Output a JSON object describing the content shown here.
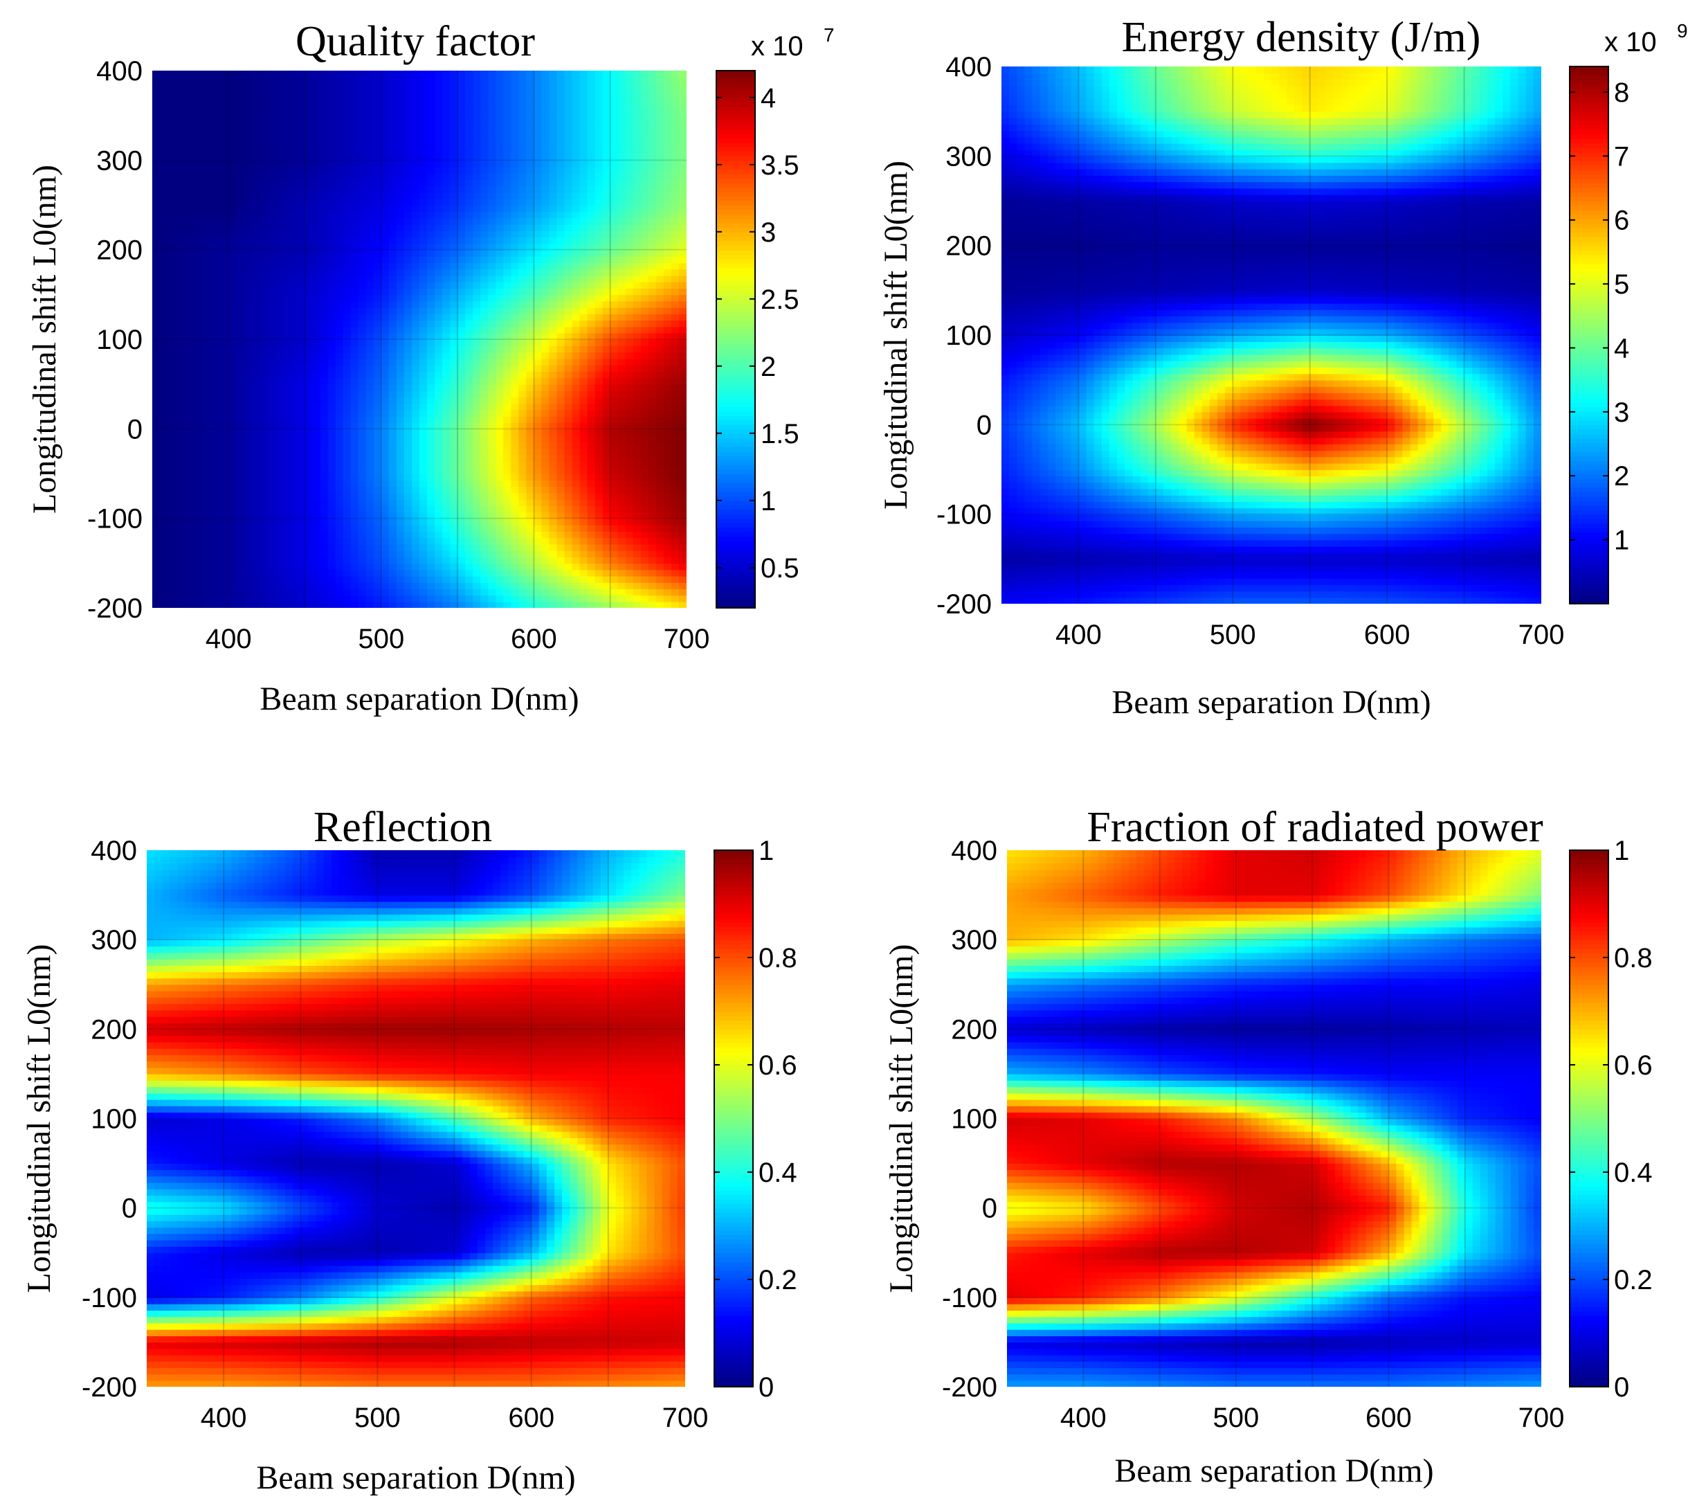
{
  "chart_data": [
    {
      "type": "heatmap",
      "title": "Quality factor",
      "xlabel": "Beam separation D(nm)",
      "ylabel": "Longitudinal shift L0(nm)",
      "x_range": [
        350,
        700
      ],
      "y_range": [
        -200,
        400
      ],
      "x_ticks": [
        "400",
        "500",
        "600",
        "700"
      ],
      "y_ticks": [
        "400",
        "300",
        "200",
        "100",
        "0",
        "-100",
        "-200"
      ],
      "colorbar": {
        "min": 0.2,
        "max": 4.2,
        "ticks": [
          "4",
          "3.5",
          "3",
          "2.5",
          "2",
          "1.5",
          "1",
          "0.5"
        ],
        "exponent_label": "x 10",
        "exponent": "7"
      },
      "x": [
        350,
        400,
        450,
        500,
        550,
        600,
        650,
        700
      ],
      "y": [
        -200,
        -150,
        -100,
        -50,
        0,
        50,
        100,
        150,
        200,
        250,
        300,
        350,
        400
      ],
      "z_description_units": "x 10^7",
      "z": [
        [
          0.2,
          0.3,
          0.5,
          0.8,
          1.2,
          1.8,
          2.3,
          2.8
        ],
        [
          0.2,
          0.3,
          0.6,
          1.0,
          1.6,
          2.4,
          3.2,
          3.8
        ],
        [
          0.2,
          0.3,
          0.6,
          1.1,
          1.9,
          2.8,
          3.7,
          4.1
        ],
        [
          0.2,
          0.3,
          0.6,
          1.2,
          2.1,
          3.1,
          3.9,
          4.2
        ],
        [
          0.2,
          0.3,
          0.6,
          1.2,
          2.1,
          3.2,
          4.0,
          4.2
        ],
        [
          0.2,
          0.3,
          0.6,
          1.1,
          1.9,
          2.9,
          3.8,
          4.1
        ],
        [
          0.2,
          0.3,
          0.5,
          1.0,
          1.7,
          2.5,
          3.4,
          3.9
        ],
        [
          0.2,
          0.3,
          0.5,
          0.8,
          1.4,
          2.0,
          2.7,
          3.2
        ],
        [
          0.2,
          0.3,
          0.4,
          0.7,
          1.1,
          1.6,
          2.1,
          2.6
        ],
        [
          0.2,
          0.2,
          0.4,
          0.6,
          0.9,
          1.3,
          1.8,
          2.3
        ],
        [
          0.2,
          0.2,
          0.3,
          0.5,
          0.8,
          1.2,
          1.7,
          2.2
        ],
        [
          0.2,
          0.2,
          0.3,
          0.5,
          0.8,
          1.2,
          1.7,
          2.2
        ],
        [
          0.2,
          0.2,
          0.3,
          0.5,
          0.8,
          1.2,
          1.7,
          2.3
        ]
      ]
    },
    {
      "type": "heatmap",
      "title": "Energy density (J/m)",
      "xlabel": "Beam separation D(nm)",
      "ylabel": "Longitudinal shift L0(nm)",
      "x_range": [
        350,
        700
      ],
      "y_range": [
        -200,
        400
      ],
      "x_ticks": [
        "400",
        "500",
        "600",
        "700"
      ],
      "y_ticks": [
        "400",
        "300",
        "200",
        "100",
        "0",
        "-100",
        "-200"
      ],
      "colorbar": {
        "min": 0,
        "max": 8.4,
        "ticks": [
          "8",
          "7",
          "6",
          "5",
          "4",
          "3",
          "2",
          "1"
        ],
        "exponent_label": "x 10",
        "exponent": "9"
      },
      "x": [
        350,
        400,
        450,
        500,
        550,
        600,
        650,
        700
      ],
      "y": [
        -200,
        -150,
        -100,
        -50,
        0,
        50,
        100,
        150,
        200,
        250,
        300,
        350,
        400
      ],
      "z_description_units": "x 10^9",
      "z": [
        [
          1.0,
          1.2,
          1.5,
          1.8,
          1.8,
          1.7,
          1.5,
          1.2
        ],
        [
          0.3,
          0.4,
          0.5,
          0.6,
          0.6,
          0.6,
          0.5,
          0.4
        ],
        [
          1.0,
          1.3,
          1.8,
          2.4,
          2.6,
          2.3,
          1.8,
          1.3
        ],
        [
          1.3,
          2.2,
          3.6,
          5.0,
          5.8,
          5.2,
          3.6,
          2.0
        ],
        [
          1.5,
          2.6,
          4.5,
          7.0,
          8.4,
          7.4,
          4.6,
          2.2
        ],
        [
          1.2,
          2.0,
          3.6,
          5.2,
          6.0,
          5.4,
          3.4,
          1.8
        ],
        [
          0.6,
          1.0,
          1.8,
          2.4,
          2.8,
          2.5,
          1.7,
          1.0
        ],
        [
          0.2,
          0.3,
          0.4,
          0.5,
          0.6,
          0.5,
          0.4,
          0.3
        ],
        [
          0.1,
          0.1,
          0.2,
          0.2,
          0.2,
          0.2,
          0.2,
          0.1
        ],
        [
          0.2,
          0.3,
          0.4,
          0.6,
          0.7,
          0.6,
          0.4,
          0.3
        ],
        [
          0.8,
          1.5,
          2.3,
          3.0,
          3.4,
          3.1,
          2.3,
          1.5
        ],
        [
          1.4,
          2.4,
          3.7,
          4.8,
          5.4,
          5.0,
          3.7,
          2.4
        ],
        [
          1.6,
          2.6,
          4.0,
          5.2,
          5.6,
          5.3,
          3.9,
          2.6
        ]
      ]
    },
    {
      "type": "heatmap",
      "title": "Reflection",
      "xlabel": "Beam separation D(nm)",
      "ylabel": "Longitudinal shift L0(nm)",
      "x_range": [
        350,
        700
      ],
      "y_range": [
        -200,
        400
      ],
      "x_ticks": [
        "400",
        "500",
        "600",
        "700"
      ],
      "y_ticks": [
        "400",
        "300",
        "200",
        "100",
        "0",
        "-100",
        "-200"
      ],
      "colorbar": {
        "min": 0,
        "max": 1,
        "ticks": [
          "1",
          "0.8",
          "0.6",
          "0.4",
          "0.2",
          "0"
        ],
        "exponent_label": "",
        "exponent": ""
      },
      "x": [
        350,
        400,
        450,
        500,
        550,
        600,
        650,
        700
      ],
      "y": [
        -200,
        -150,
        -100,
        -50,
        0,
        50,
        100,
        150,
        200,
        250,
        300,
        350,
        400
      ],
      "z": [
        [
          0.72,
          0.72,
          0.74,
          0.76,
          0.76,
          0.76,
          0.74,
          0.72
        ],
        [
          0.9,
          0.92,
          0.94,
          0.96,
          0.96,
          0.94,
          0.93,
          0.92
        ],
        [
          0.1,
          0.15,
          0.25,
          0.4,
          0.6,
          0.78,
          0.86,
          0.88
        ],
        [
          0.15,
          0.1,
          0.05,
          0.05,
          0.08,
          0.3,
          0.65,
          0.8
        ],
        [
          0.4,
          0.35,
          0.2,
          0.08,
          0.05,
          0.15,
          0.6,
          0.82
        ],
        [
          0.15,
          0.1,
          0.05,
          0.05,
          0.08,
          0.3,
          0.65,
          0.8
        ],
        [
          0.08,
          0.1,
          0.15,
          0.25,
          0.45,
          0.7,
          0.84,
          0.88
        ],
        [
          0.7,
          0.74,
          0.8,
          0.84,
          0.86,
          0.88,
          0.88,
          0.88
        ],
        [
          0.92,
          0.94,
          0.96,
          0.97,
          0.97,
          0.96,
          0.95,
          0.94
        ],
        [
          0.72,
          0.76,
          0.8,
          0.84,
          0.86,
          0.88,
          0.88,
          0.9
        ],
        [
          0.3,
          0.35,
          0.45,
          0.55,
          0.62,
          0.7,
          0.76,
          0.8
        ],
        [
          0.3,
          0.22,
          0.15,
          0.1,
          0.1,
          0.2,
          0.35,
          0.5
        ],
        [
          0.35,
          0.3,
          0.2,
          0.05,
          0.05,
          0.15,
          0.3,
          0.4
        ]
      ]
    },
    {
      "type": "heatmap",
      "title": "Fraction of radiated power",
      "xlabel": "Beam separation D(nm)",
      "ylabel": "Longitudinal shift L0(nm)",
      "x_range": [
        350,
        700
      ],
      "y_range": [
        -200,
        400
      ],
      "x_ticks": [
        "400",
        "500",
        "600",
        "700"
      ],
      "y_ticks": [
        "400",
        "300",
        "200",
        "100",
        "0",
        "-100",
        "-200"
      ],
      "colorbar": {
        "min": 0,
        "max": 1,
        "ticks": [
          "1",
          "0.8",
          "0.6",
          "0.4",
          "0.2",
          "0"
        ],
        "exponent_label": "",
        "exponent": ""
      },
      "x": [
        350,
        400,
        450,
        500,
        550,
        600,
        650,
        700
      ],
      "y": [
        -200,
        -150,
        -100,
        -50,
        0,
        50,
        100,
        150,
        200,
        250,
        300,
        350,
        400
      ],
      "z": [
        [
          0.28,
          0.28,
          0.26,
          0.24,
          0.24,
          0.24,
          0.26,
          0.28
        ],
        [
          0.1,
          0.08,
          0.06,
          0.04,
          0.04,
          0.06,
          0.07,
          0.08
        ],
        [
          0.9,
          0.85,
          0.75,
          0.6,
          0.4,
          0.22,
          0.14,
          0.12
        ],
        [
          0.85,
          0.9,
          0.95,
          0.95,
          0.92,
          0.7,
          0.35,
          0.2
        ],
        [
          0.6,
          0.65,
          0.8,
          0.92,
          0.95,
          0.85,
          0.4,
          0.18
        ],
        [
          0.85,
          0.9,
          0.95,
          0.95,
          0.92,
          0.7,
          0.35,
          0.2
        ],
        [
          0.92,
          0.9,
          0.85,
          0.75,
          0.55,
          0.3,
          0.16,
          0.12
        ],
        [
          0.3,
          0.26,
          0.2,
          0.16,
          0.14,
          0.12,
          0.12,
          0.12
        ],
        [
          0.08,
          0.06,
          0.04,
          0.03,
          0.03,
          0.04,
          0.05,
          0.06
        ],
        [
          0.28,
          0.24,
          0.2,
          0.16,
          0.14,
          0.12,
          0.12,
          0.1
        ],
        [
          0.7,
          0.65,
          0.55,
          0.45,
          0.38,
          0.3,
          0.24,
          0.2
        ],
        [
          0.72,
          0.78,
          0.85,
          0.9,
          0.9,
          0.8,
          0.65,
          0.5
        ],
        [
          0.65,
          0.7,
          0.8,
          0.9,
          0.92,
          0.85,
          0.7,
          0.6
        ]
      ]
    }
  ]
}
